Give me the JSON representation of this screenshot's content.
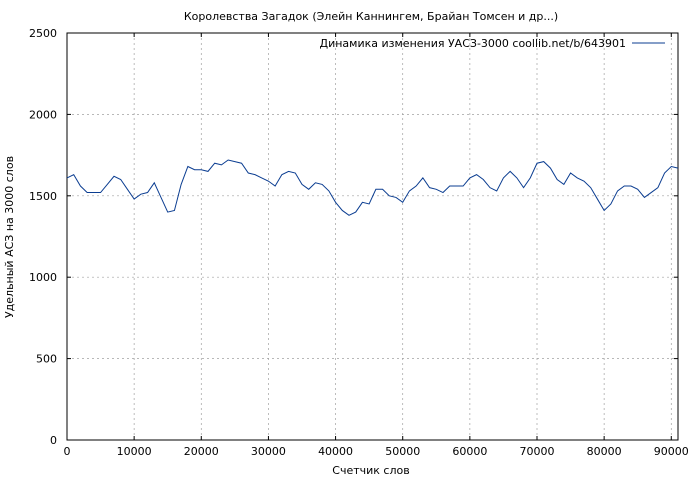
{
  "chart_data": {
    "type": "line",
    "title": "Королевства Загадок (Элейн Каннингем, Брайан Томсен и др...)",
    "xlabel": "Счетчик слов",
    "ylabel": "Удельный АСЗ на 3000 слов",
    "xlim": [
      0,
      91000
    ],
    "ylim": [
      0,
      2500
    ],
    "xticks": [
      0,
      10000,
      20000,
      30000,
      40000,
      50000,
      60000,
      70000,
      80000,
      90000
    ],
    "yticks": [
      0,
      500,
      1000,
      1500,
      2000,
      2500
    ],
    "grid": true,
    "legend_position": "top-right",
    "series": [
      {
        "name": "Динамика изменения УАСЗ-3000 coollib.net/b/643901",
        "color": "#0b3d91",
        "x": [
          0,
          1000,
          2000,
          3000,
          4000,
          5000,
          6000,
          7000,
          8000,
          9000,
          10000,
          11000,
          12000,
          13000,
          14000,
          15000,
          16000,
          17000,
          18000,
          19000,
          20000,
          21000,
          22000,
          23000,
          24000,
          25000,
          26000,
          27000,
          28000,
          29000,
          30000,
          31000,
          32000,
          33000,
          34000,
          35000,
          36000,
          37000,
          38000,
          39000,
          40000,
          41000,
          42000,
          43000,
          44000,
          45000,
          46000,
          47000,
          48000,
          49000,
          50000,
          51000,
          52000,
          53000,
          54000,
          55000,
          56000,
          57000,
          58000,
          59000,
          60000,
          61000,
          62000,
          63000,
          64000,
          65000,
          66000,
          67000,
          68000,
          69000,
          70000,
          71000,
          72000,
          73000,
          74000,
          75000,
          76000,
          77000,
          78000,
          79000,
          80000,
          81000,
          82000,
          83000,
          84000,
          85000,
          86000,
          87000,
          88000,
          89000,
          90000,
          91000
        ],
        "y": [
          1610,
          1630,
          1560,
          1520,
          1520,
          1520,
          1570,
          1620,
          1600,
          1540,
          1480,
          1510,
          1520,
          1580,
          1490,
          1400,
          1410,
          1570,
          1680,
          1660,
          1660,
          1650,
          1700,
          1690,
          1720,
          1710,
          1700,
          1640,
          1630,
          1610,
          1590,
          1560,
          1630,
          1650,
          1640,
          1570,
          1540,
          1580,
          1570,
          1530,
          1460,
          1410,
          1380,
          1400,
          1460,
          1450,
          1540,
          1540,
          1500,
          1490,
          1460,
          1530,
          1560,
          1610,
          1550,
          1540,
          1520,
          1560,
          1560,
          1560,
          1610,
          1630,
          1600,
          1550,
          1530,
          1610,
          1650,
          1610,
          1550,
          1610,
          1700,
          1710,
          1670,
          1600,
          1570,
          1640,
          1610,
          1590,
          1550,
          1480,
          1410,
          1450,
          1530,
          1560,
          1560,
          1540,
          1490,
          1520,
          1550,
          1640,
          1680,
          1670
        ]
      }
    ]
  }
}
